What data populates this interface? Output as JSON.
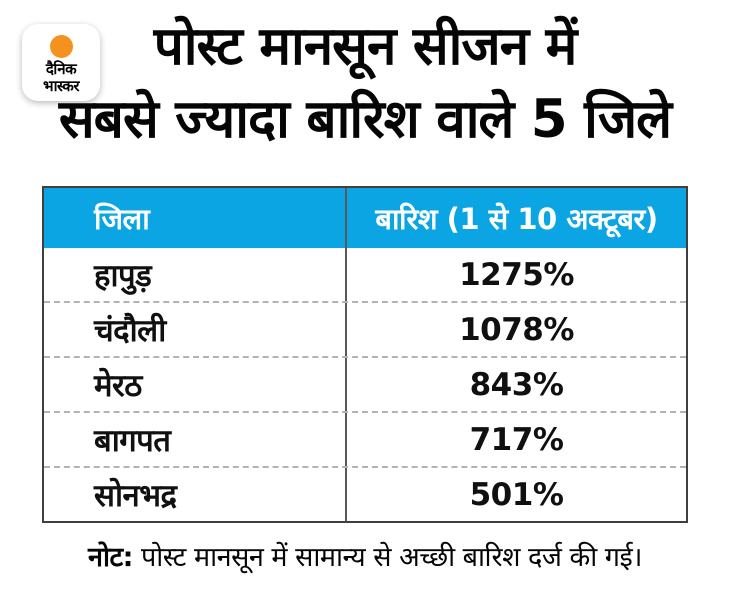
{
  "brand": {
    "logo_line1": "दैनिक",
    "logo_line2": "भास्कर"
  },
  "title": {
    "line1": "पोस्ट मानसून सीजन में",
    "line2": "सबसे ज्यादा बारिश वाले 5 जिले"
  },
  "table": {
    "header": {
      "district": "जिला",
      "rainfall": "बारिश (1 से 10 अक्टूबर)"
    },
    "rows": [
      {
        "district": "हापुड़",
        "rainfall": "1275%"
      },
      {
        "district": "चंदौली",
        "rainfall": "1078%"
      },
      {
        "district": "मेरठ",
        "rainfall": "843%"
      },
      {
        "district": "बागपत",
        "rainfall": "717%"
      },
      {
        "district": "सोनभद्र",
        "rainfall": "501%"
      }
    ]
  },
  "note": {
    "label": "नोट:",
    "text": " पोस्ट मानसून में सामान्य से अच्छी बारिश दर्ज की गई।"
  },
  "colors": {
    "header_bg": "#0BA5E3",
    "header_text": "#FFFFFF",
    "logo_sun_orange": "#F5911E",
    "text_black": "#0D0D0D"
  },
  "chart_data": {
    "type": "table",
    "title": "पोस्ट मानसून सीजन में सबसे ज्यादा बारिश वाले 5 जिले",
    "columns": [
      "जिला",
      "बारिश (1 से 10 अक्टूबर)"
    ],
    "categories": [
      "हापुड़",
      "चंदौली",
      "मेरठ",
      "बागपत",
      "सोनभद्र"
    ],
    "values": [
      1275,
      1078,
      843,
      717,
      501
    ],
    "unit": "%",
    "note": "नोट: पोस्ट मानसून में सामान्य से अच्छी बारिश दर्ज की गई।",
    "source": "दैनिक भास्कर"
  }
}
